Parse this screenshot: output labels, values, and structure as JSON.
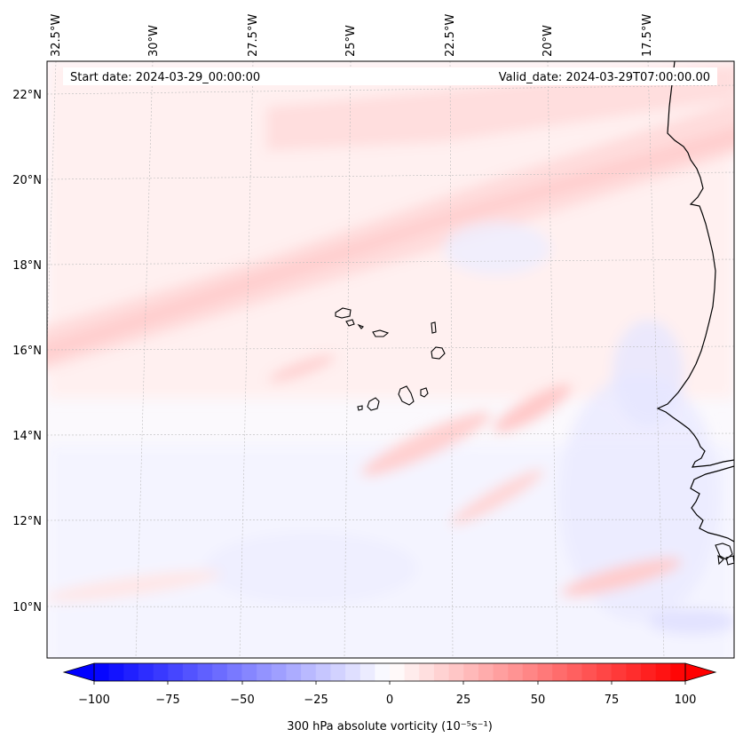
{
  "map": {
    "header": {
      "start_date": "Start date: 2024-03-29_00:00:00",
      "valid_date": "Valid_date: 2024-03-29T07:00:00.00"
    },
    "lon_labels": [
      "32.5°W",
      "30°W",
      "27.5°W",
      "25°W",
      "22.5°W",
      "20°W",
      "17.5°W"
    ],
    "lat_labels": [
      "22°N",
      "20°N",
      "18°N",
      "16°N",
      "14°N",
      "12°N",
      "10°N"
    ],
    "features": [
      "Cabo Verde islands",
      "West African coastline"
    ],
    "colors": {
      "negative": "#0000ff",
      "zero": "#ffffff",
      "positive": "#ff0000",
      "coastline": "#000000"
    }
  },
  "colorbar": {
    "label": "300 hPa absolute vorticity (10⁻⁵s⁻¹)",
    "min": -100,
    "max": 100,
    "ticks": [
      "−100",
      "−75",
      "−50",
      "−25",
      "0",
      "25",
      "50",
      "75",
      "100"
    ],
    "extend": "both"
  }
}
